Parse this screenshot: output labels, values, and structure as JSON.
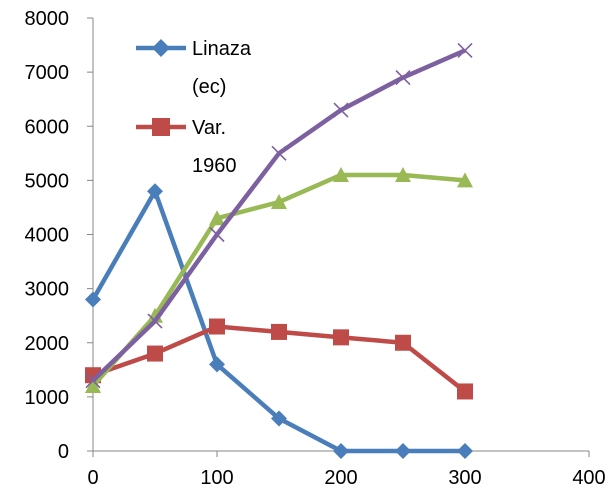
{
  "chart_data": {
    "type": "line",
    "title": "",
    "xlabel": "",
    "ylabel": "",
    "xlim": [
      0,
      400
    ],
    "ylim": [
      0,
      8000
    ],
    "xticks": [
      0,
      100,
      200,
      300,
      400
    ],
    "yticks": [
      0,
      1000,
      2000,
      3000,
      4000,
      5000,
      6000,
      7000,
      8000
    ],
    "grid": false,
    "legend_position": "top-left",
    "x": [
      0,
      50,
      100,
      150,
      200,
      250,
      300
    ],
    "series": [
      {
        "name": "Linaza (ec)",
        "legend_lines": [
          "Linaza",
          "(ec)"
        ],
        "color": "#4a7ebb",
        "marker": "diamond",
        "values": [
          2800,
          4800,
          1600,
          600,
          0,
          0,
          0
        ]
      },
      {
        "name": "Var. 1960",
        "legend_lines": [
          "Var.",
          "1960"
        ],
        "color": "#be4b48",
        "marker": "square",
        "values": [
          1400,
          1800,
          2300,
          2200,
          2100,
          2000,
          1100
        ]
      },
      {
        "color": "#98b954",
        "marker": "triangle",
        "values": [
          1200,
          2500,
          4300,
          4600,
          5100,
          5100,
          5000
        ]
      },
      {
        "color": "#7d60a0",
        "marker": "x",
        "values": [
          1300,
          2400,
          4000,
          5500,
          6300,
          6900,
          7400
        ]
      }
    ]
  }
}
